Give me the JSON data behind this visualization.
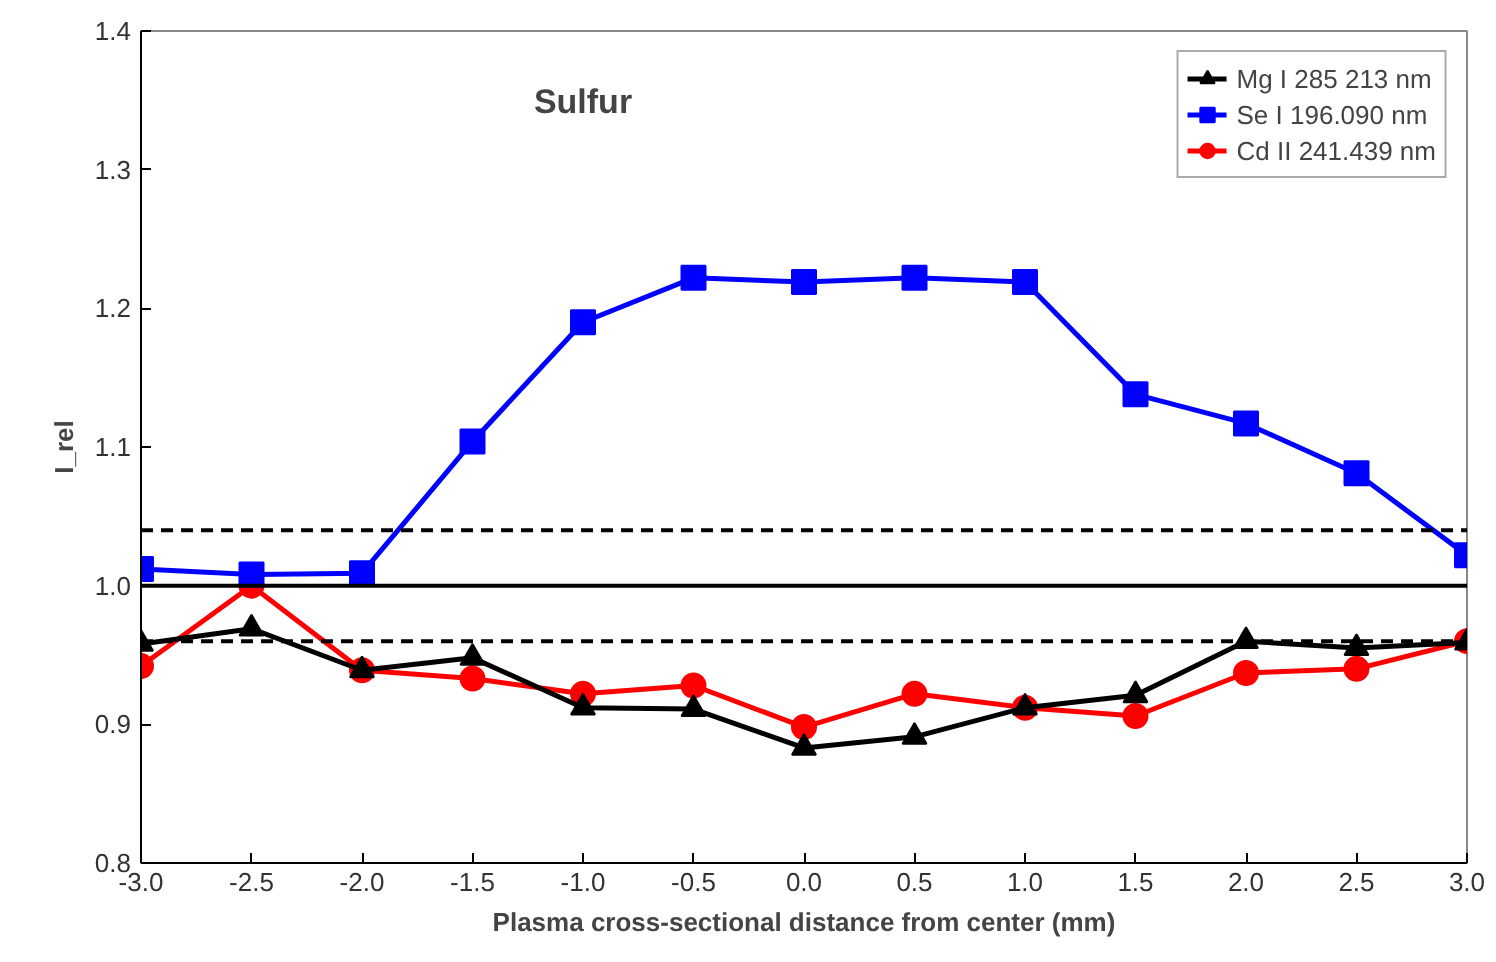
{
  "chart_data": {
    "type": "line",
    "title": "Sulfur",
    "xlabel": "Plasma cross-sectional distance from center (mm)",
    "ylabel": "I_rel",
    "x": [
      -3.0,
      -2.5,
      -2.0,
      -1.5,
      -1.0,
      -0.5,
      0.0,
      0.5,
      1.0,
      1.5,
      2.0,
      2.5,
      3.0
    ],
    "series": [
      {
        "name": "Mg I 285 213 nm",
        "color": "#000000",
        "marker": "triangle",
        "values": [
          0.958,
          0.969,
          0.939,
          0.948,
          0.912,
          0.911,
          0.883,
          0.891,
          0.912,
          0.921,
          0.96,
          0.955,
          0.959
        ]
      },
      {
        "name": "Se I 196.090 nm",
        "color": "#0000ff",
        "marker": "square",
        "values": [
          1.012,
          1.008,
          1.009,
          1.104,
          1.19,
          1.222,
          1.219,
          1.222,
          1.219,
          1.138,
          1.117,
          1.081,
          1.022
        ]
      },
      {
        "name": "Cd II 241.439 nm",
        "color": "#ff0000",
        "marker": "circle",
        "values": [
          0.942,
          1.0,
          0.939,
          0.933,
          0.922,
          0.928,
          0.898,
          0.922,
          0.912,
          0.906,
          0.937,
          0.94,
          0.96
        ]
      }
    ],
    "xlim": [
      -3.0,
      3.0
    ],
    "ylim": [
      0.8,
      1.4
    ],
    "xticks": [
      {
        "value": -3,
        "label": "-3.0"
      },
      {
        "value": -2.5,
        "label": "-2.5"
      },
      {
        "value": -2,
        "label": "-2.0"
      },
      {
        "value": -1.5,
        "label": "-1.5"
      },
      {
        "value": -1,
        "label": "-1.0"
      },
      {
        "value": -0.5,
        "label": "-0.5"
      },
      {
        "value": 0,
        "label": "0.0"
      },
      {
        "value": 0.5,
        "label": "0.5"
      },
      {
        "value": 1,
        "label": "1.0"
      },
      {
        "value": 1.5,
        "label": "1.5"
      },
      {
        "value": 2,
        "label": "2.0"
      },
      {
        "value": 2.5,
        "label": "2.5"
      },
      {
        "value": 3,
        "label": "3.0"
      }
    ],
    "yticks": [
      {
        "value": 0.8,
        "label": "0.8"
      },
      {
        "value": 0.9,
        "label": "0.9"
      },
      {
        "value": 1.0,
        "label": "1.0"
      },
      {
        "value": 1.1,
        "label": "1.1"
      },
      {
        "value": 1.2,
        "label": "1.2"
      },
      {
        "value": 1.3,
        "label": "1.3"
      },
      {
        "value": 1.4,
        "label": "1.4"
      }
    ],
    "ref_lines": [
      {
        "axis": "y",
        "value": 1.0,
        "color": "#000000",
        "line_style": "solid"
      },
      {
        "axis": "y",
        "value": 1.04,
        "color": "#000000",
        "line_style": "dashed"
      },
      {
        "axis": "y",
        "value": 0.96,
        "color": "#000000",
        "line_style": "dashed"
      }
    ],
    "grid": false,
    "legend": "top right",
    "line_style": "solid"
  }
}
